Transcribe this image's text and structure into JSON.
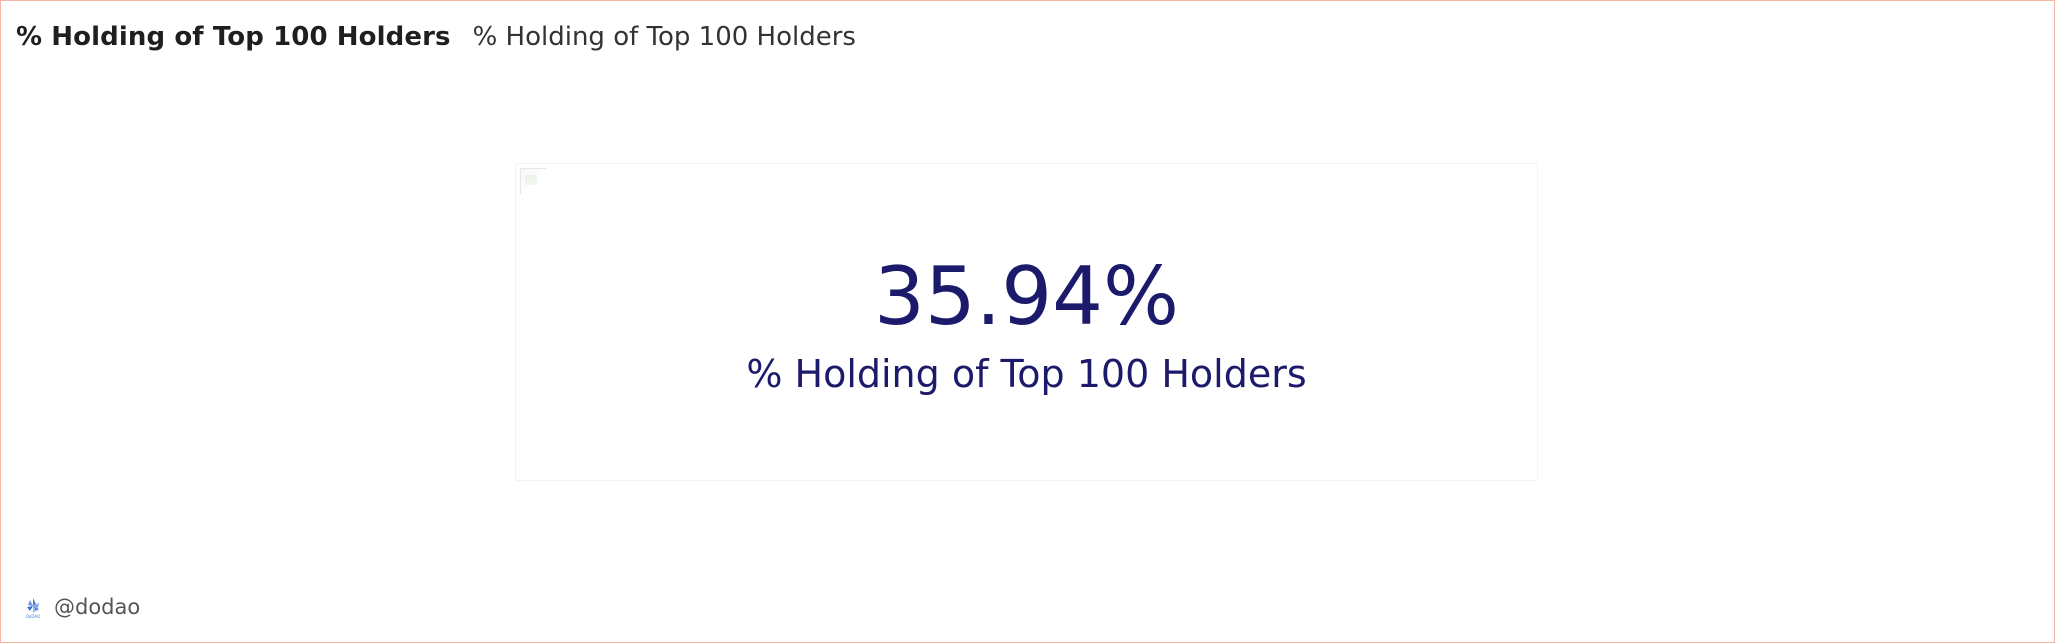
{
  "header": {
    "title": "% Holding of Top 100 Holders",
    "subtitle": "% Holding of Top 100 Holders"
  },
  "counter": {
    "value": "35.94%",
    "label": "% Holding of Top 100 Holders",
    "color": "#1c1a6b"
  },
  "footer": {
    "logo_icon": "dodao-logo-icon",
    "handle": "@dodao"
  }
}
